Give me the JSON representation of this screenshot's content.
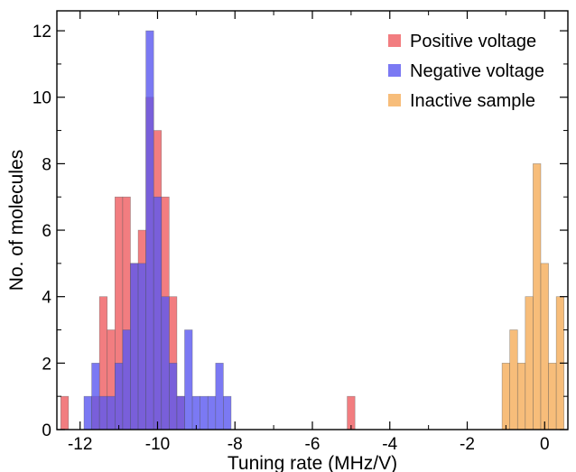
{
  "chart_data": {
    "type": "bar",
    "subtype": "overlapping histogram",
    "title": "",
    "xlabel": "Tuning rate (MHz/V)",
    "ylabel": "No. of molecules",
    "xlim": [
      -12.6,
      0.6
    ],
    "ylim": [
      0,
      12.6
    ],
    "x_ticks": [
      -12,
      -10,
      -8,
      -6,
      -4,
      -2,
      0
    ],
    "x_tick_labels": [
      "-12",
      "-10",
      "-8",
      "-6",
      "-4",
      "-2",
      "0"
    ],
    "y_ticks": [
      0,
      2,
      4,
      6,
      8,
      10,
      12
    ],
    "y_tick_labels": [
      "0",
      "2",
      "4",
      "6",
      "8",
      "10",
      "12"
    ],
    "bin_width": 0.2,
    "grid": false,
    "legend_position": "top-right",
    "series": [
      {
        "name": "Positive voltage",
        "color": "#f0666a",
        "opacity": 0.85,
        "bins": [
          {
            "x": -12.4,
            "count": 1
          },
          {
            "x": -11.6,
            "count": 1
          },
          {
            "x": -11.4,
            "count": 4
          },
          {
            "x": -11.2,
            "count": 3
          },
          {
            "x": -11.0,
            "count": 7
          },
          {
            "x": -10.8,
            "count": 7
          },
          {
            "x": -10.6,
            "count": 5
          },
          {
            "x": -10.4,
            "count": 6
          },
          {
            "x": -10.2,
            "count": 10
          },
          {
            "x": -10.0,
            "count": 9
          },
          {
            "x": -9.8,
            "count": 7
          },
          {
            "x": -9.6,
            "count": 4
          },
          {
            "x": -9.4,
            "count": 1
          },
          {
            "x": -5.0,
            "count": 1
          }
        ]
      },
      {
        "name": "Negative voltage",
        "color": "#5a58f0",
        "opacity": 0.8,
        "bins": [
          {
            "x": -11.8,
            "count": 1
          },
          {
            "x": -11.6,
            "count": 2
          },
          {
            "x": -11.4,
            "count": 1
          },
          {
            "x": -11.2,
            "count": 1
          },
          {
            "x": -11.0,
            "count": 2
          },
          {
            "x": -10.8,
            "count": 3
          },
          {
            "x": -10.6,
            "count": 5
          },
          {
            "x": -10.4,
            "count": 5
          },
          {
            "x": -10.2,
            "count": 12
          },
          {
            "x": -10.0,
            "count": 7
          },
          {
            "x": -9.8,
            "count": 4
          },
          {
            "x": -9.6,
            "count": 2
          },
          {
            "x": -9.4,
            "count": 1
          },
          {
            "x": -9.2,
            "count": 3
          },
          {
            "x": -9.0,
            "count": 1
          },
          {
            "x": -8.8,
            "count": 1
          },
          {
            "x": -8.6,
            "count": 1
          },
          {
            "x": -8.4,
            "count": 2
          },
          {
            "x": -8.2,
            "count": 1
          }
        ]
      },
      {
        "name": "Inactive sample",
        "color": "#f6b263",
        "opacity": 0.85,
        "bins": [
          {
            "x": -1.0,
            "count": 2
          },
          {
            "x": -0.8,
            "count": 3
          },
          {
            "x": -0.6,
            "count": 2
          },
          {
            "x": -0.4,
            "count": 4
          },
          {
            "x": -0.2,
            "count": 8
          },
          {
            "x": 0.0,
            "count": 5
          },
          {
            "x": 0.2,
            "count": 2
          },
          {
            "x": 0.4,
            "count": 4
          }
        ]
      }
    ]
  }
}
